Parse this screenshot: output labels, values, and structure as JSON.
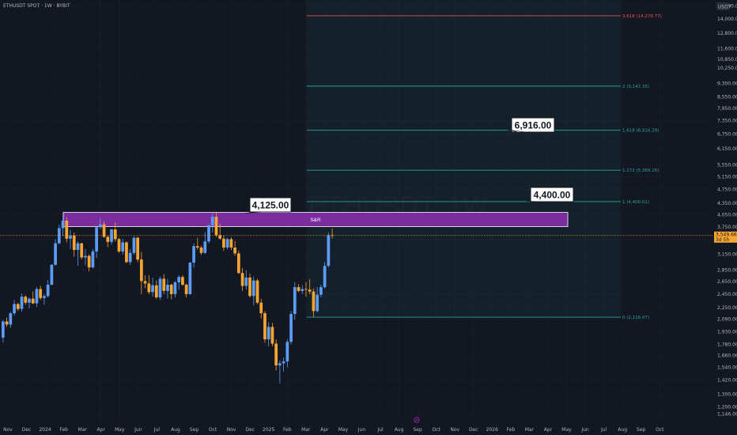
{
  "header": {
    "symbol_line": "ETHUSDT SPOT · 1W · BYBIT",
    "currency_badge": "USDT"
  },
  "watermark": "ETHUSDT, 1W",
  "colors": {
    "up": "#5b9cf6",
    "down": "#f7a531",
    "zone": "#7b2c9e",
    "fib_line": "#26a69a",
    "fib_top": "#ef5350",
    "bg": "#131722"
  },
  "chart_data": {
    "type": "candlestick",
    "symbol": "ETHUSDT",
    "interval": "1W",
    "y_scale": "log",
    "ylim": [
      1146,
      15200
    ],
    "y_ticks": [
      15200,
      14000,
      12800,
      11600,
      10850,
      10250,
      9300,
      8550,
      7950,
      7350,
      6750,
      6150,
      5550,
      5150,
      4750,
      4350,
      4050,
      3750,
      3450,
      3150,
      2850,
      2650,
      2450,
      2250,
      2090,
      1930,
      1780,
      1660,
      1540,
      1420,
      1300,
      1200,
      1146
    ],
    "x_labels": [
      "Nov",
      "Dec",
      "2024",
      "Feb",
      "Mar",
      "Apr",
      "May",
      "Jun",
      "Jul",
      "Aug",
      "Sep",
      "Oct",
      "Nov",
      "Dec",
      "2025",
      "Feb",
      "Mar",
      "Apr",
      "May",
      "Jun",
      "Jul",
      "Aug",
      "Sep",
      "Oct",
      "Nov",
      "Dec",
      "2026",
      "Feb",
      "Mar",
      "Apr",
      "May",
      "Jun",
      "Jul",
      "Aug",
      "Sep",
      "Oct"
    ],
    "candles": [
      [
        1860,
        2080,
        1800,
        2060
      ],
      [
        2060,
        2110,
        1990,
        2020
      ],
      [
        2020,
        2190,
        1980,
        2170
      ],
      [
        2170,
        2360,
        2140,
        2300
      ],
      [
        2300,
        2320,
        2200,
        2230
      ],
      [
        2230,
        2460,
        2190,
        2410
      ],
      [
        2410,
        2430,
        2290,
        2320
      ],
      [
        2320,
        2400,
        2240,
        2380
      ],
      [
        2380,
        2490,
        2300,
        2310
      ],
      [
        2310,
        2560,
        2260,
        2530
      ],
      [
        2530,
        2580,
        2360,
        2390
      ],
      [
        2390,
        2450,
        2290,
        2420
      ],
      [
        2420,
        2680,
        2400,
        2600
      ],
      [
        2600,
        2960,
        2590,
        2950
      ],
      [
        2950,
        3470,
        2930,
        3380
      ],
      [
        3380,
        3800,
        3360,
        3720
      ],
      [
        3720,
        4090,
        3540,
        3900
      ],
      [
        3900,
        3990,
        3400,
        3480
      ],
      [
        3480,
        3680,
        3260,
        3550
      ],
      [
        3550,
        3620,
        3100,
        3240
      ],
      [
        3240,
        3420,
        2930,
        3380
      ],
      [
        3380,
        3390,
        3050,
        3090
      ],
      [
        3090,
        3260,
        2940,
        3120
      ],
      [
        3120,
        3150,
        2830,
        2900
      ],
      [
        2900,
        3260,
        2880,
        3210
      ],
      [
        3210,
        3750,
        3080,
        3740
      ],
      [
        3740,
        3970,
        3700,
        3810
      ],
      [
        3810,
        3880,
        3500,
        3520
      ],
      [
        3520,
        3560,
        3300,
        3410
      ],
      [
        3410,
        3700,
        3350,
        3690
      ],
      [
        3690,
        3860,
        3420,
        3470
      ],
      [
        3470,
        3500,
        3180,
        3210
      ],
      [
        3210,
        3480,
        3150,
        3400
      ],
      [
        3400,
        3420,
        2980,
        3000
      ],
      [
        3000,
        3260,
        2950,
        3180
      ],
      [
        3180,
        3530,
        3140,
        3500
      ],
      [
        3500,
        3520,
        3000,
        3050
      ],
      [
        3050,
        3200,
        2450,
        2660
      ],
      [
        2660,
        2760,
        2540,
        2620
      ],
      [
        2620,
        2760,
        2450,
        2480
      ],
      [
        2480,
        2720,
        2410,
        2590
      ],
      [
        2590,
        2670,
        2380,
        2400
      ],
      [
        2400,
        2740,
        2360,
        2700
      ],
      [
        2700,
        2780,
        2450,
        2500
      ],
      [
        2500,
        2700,
        2380,
        2600
      ],
      [
        2600,
        2620,
        2370,
        2450
      ],
      [
        2450,
        2660,
        2400,
        2640
      ],
      [
        2640,
        2760,
        2520,
        2730
      ],
      [
        2730,
        2760,
        2580,
        2600
      ],
      [
        2600,
        2620,
        2400,
        2450
      ],
      [
        2450,
        3000,
        2440,
        2990
      ],
      [
        2990,
        3380,
        2900,
        3320
      ],
      [
        3320,
        3500,
        3240,
        3290
      ],
      [
        3290,
        3330,
        3140,
        3180
      ],
      [
        3180,
        3630,
        3160,
        3420
      ],
      [
        3420,
        3810,
        3380,
        3790
      ],
      [
        3790,
        4090,
        3620,
        4000
      ],
      [
        4000,
        4100,
        3520,
        3560
      ],
      [
        3560,
        3830,
        3460,
        3480
      ],
      [
        3480,
        3550,
        3220,
        3290
      ],
      [
        3290,
        3500,
        3250,
        3470
      ],
      [
        3470,
        3510,
        3240,
        3290
      ],
      [
        3290,
        3430,
        3120,
        3170
      ],
      [
        3170,
        3230,
        2780,
        2800
      ],
      [
        2800,
        2890,
        2500,
        2580
      ],
      [
        2580,
        2850,
        2520,
        2720
      ],
      [
        2720,
        2790,
        2400,
        2420
      ],
      [
        2420,
        2740,
        2280,
        2670
      ],
      [
        2670,
        2700,
        2300,
        2320
      ],
      [
        2320,
        2380,
        2100,
        2170
      ],
      [
        2170,
        2200,
        1800,
        1840
      ],
      [
        1840,
        2050,
        1760,
        1990
      ],
      [
        1990,
        2040,
        1760,
        1790
      ],
      [
        1790,
        1840,
        1510,
        1560
      ],
      [
        1560,
        1610,
        1390,
        1580
      ],
      [
        1580,
        1640,
        1500,
        1600
      ],
      [
        1600,
        1840,
        1540,
        1810
      ],
      [
        1810,
        2200,
        1780,
        2160
      ],
      [
        2160,
        2640,
        2080,
        2560
      ],
      [
        2560,
        2610,
        2480,
        2500
      ],
      [
        2500,
        2590,
        2450,
        2530
      ],
      [
        2530,
        2640,
        2410,
        2520
      ],
      [
        2520,
        2690,
        2450,
        2490
      ],
      [
        2490,
        2540,
        2120,
        2200
      ],
      [
        2200,
        2560,
        2180,
        2440
      ],
      [
        2440,
        2600,
        2400,
        2560
      ],
      [
        2560,
        3000,
        2540,
        2930
      ],
      [
        2930,
        3620,
        2900,
        3560
      ],
      [
        3560,
        3710,
        3480,
        3550
      ]
    ],
    "last_price": "3,549.66",
    "countdown": "3d 5h",
    "zone": {
      "label": "S&R",
      "low": 3720,
      "high": 4110,
      "callout": "4,125.00"
    },
    "callouts": [
      "6,916.00",
      "4,400.00"
    ],
    "fib_levels": [
      {
        "ratio": "3.618",
        "price": 14278.77,
        "label": "3.618 (14,278.77)"
      },
      {
        "ratio": "2",
        "price": 9147.35,
        "label": "2 (9,147.35)"
      },
      {
        "ratio": "1.618",
        "price": 6916.29,
        "label": "1.618 (6,916.29)"
      },
      {
        "ratio": "1.272",
        "price": 5369.16,
        "label": "1.272 (5,369.16)"
      },
      {
        "ratio": "1",
        "price": 4400.01,
        "label": "1 (4,400.01)"
      },
      {
        "ratio": "0",
        "price": 2116.47,
        "label": "0 (2,116.47)"
      }
    ]
  }
}
